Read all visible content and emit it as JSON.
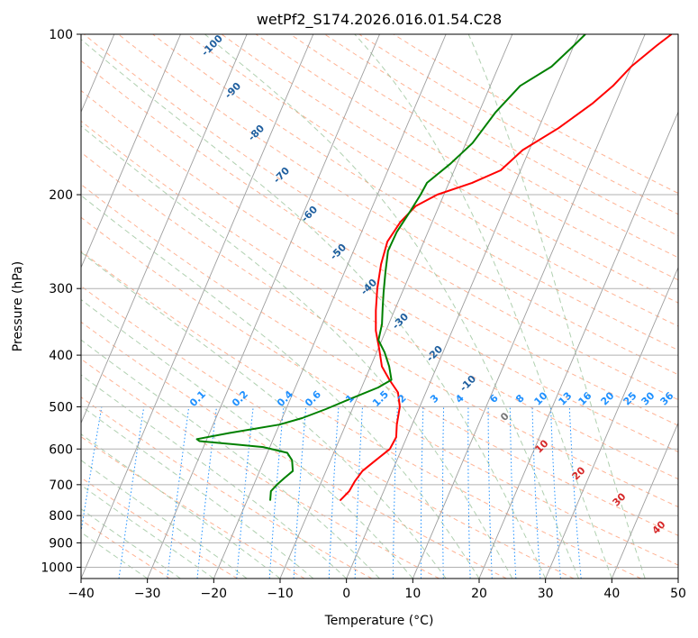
{
  "chart_data": {
    "type": "line",
    "title": "wetPf2_S174.2026.016.01.54.C28",
    "xlabel": "Temperature (°C)",
    "ylabel": "Pressure (hPa)",
    "xlim": [
      -40,
      50
    ],
    "ylim": [
      1050,
      100
    ],
    "y_scale": "log",
    "x_ticks": [
      -40,
      -30,
      -20,
      -10,
      0,
      10,
      20,
      30,
      40,
      50
    ],
    "y_ticks": [
      100,
      200,
      300,
      400,
      500,
      600,
      700,
      800,
      900,
      1000
    ],
    "grid": true,
    "series": [
      {
        "color": "#ff0000",
        "points": [
          [
            -6.0,
            750
          ],
          [
            -5.2,
            720
          ],
          [
            -5.0,
            690
          ],
          [
            -4.5,
            660
          ],
          [
            -3.2,
            630
          ],
          [
            -1.8,
            600
          ],
          [
            -1.6,
            570
          ],
          [
            -2.3,
            540
          ],
          [
            -3.0,
            500
          ],
          [
            -4.2,
            470
          ],
          [
            -6.3,
            445
          ],
          [
            -8.3,
            420
          ],
          [
            -9.8,
            390
          ],
          [
            -11.5,
            360
          ],
          [
            -12.8,
            330
          ],
          [
            -14.0,
            300
          ],
          [
            -15.0,
            270
          ],
          [
            -15.5,
            245
          ],
          [
            -14.8,
            225
          ],
          [
            -13.5,
            210
          ],
          [
            -11.0,
            200
          ],
          [
            -6.5,
            190
          ],
          [
            -3.0,
            180
          ],
          [
            -1.0,
            165
          ],
          [
            3.0,
            150
          ],
          [
            6.5,
            135
          ],
          [
            8.5,
            125
          ],
          [
            10.0,
            115
          ],
          [
            12.5,
            105
          ],
          [
            14.0,
            100
          ]
        ],
        "dash": "solid"
      },
      {
        "color": "#008000",
        "points": [
          [
            -16.5,
            750
          ],
          [
            -17.0,
            720
          ],
          [
            -16.5,
            700
          ],
          [
            -15.8,
            680
          ],
          [
            -15.0,
            660
          ],
          [
            -15.8,
            630
          ],
          [
            -17.0,
            610
          ],
          [
            -21.0,
            595
          ],
          [
            -31.0,
            580
          ],
          [
            -31.5,
            575
          ],
          [
            -27.0,
            560
          ],
          [
            -20.0,
            540
          ],
          [
            -17.0,
            525
          ],
          [
            -14.0,
            505
          ],
          [
            -10.5,
            480
          ],
          [
            -7.5,
            460
          ],
          [
            -6.0,
            445
          ],
          [
            -7.2,
            420
          ],
          [
            -8.8,
            395
          ],
          [
            -10.5,
            375
          ],
          [
            -11.0,
            350
          ],
          [
            -12.0,
            325
          ],
          [
            -12.8,
            305
          ],
          [
            -13.8,
            280
          ],
          [
            -14.8,
            255
          ],
          [
            -14.7,
            235
          ],
          [
            -14.0,
            215
          ],
          [
            -13.5,
            200
          ],
          [
            -13.3,
            190
          ],
          [
            -11.0,
            175
          ],
          [
            -9.0,
            160
          ],
          [
            -7.5,
            140
          ],
          [
            -5.5,
            125
          ],
          [
            -2.0,
            115
          ],
          [
            0.0,
            105
          ],
          [
            1.0,
            100
          ]
        ],
        "dash": "solid"
      }
    ],
    "dry_adiabat_labels": [
      "-100",
      "-90",
      "-80",
      "-70",
      "-60",
      "-50",
      "-40",
      "-30",
      "-20",
      "-10"
    ],
    "moist_adiabat_labels": [
      "0",
      "10",
      "20",
      "30",
      "40"
    ],
    "mixing_ratio_labels": [
      "0.1",
      "0.2",
      "0.4",
      "0.6",
      "1",
      "1.5",
      "2",
      "3",
      "4",
      "6",
      "8",
      "10",
      "13",
      "16",
      "20",
      "25",
      "30",
      "36"
    ],
    "colors": {
      "temperature": "#ff0000",
      "dewpoint": "#008000",
      "isotherm": "#9e9e9e",
      "dry_adiabat": "#ffa07a",
      "moist_adiabat": "#8fbc8f",
      "mixing_ratio": "#1e90ff",
      "dry_label": "#1f5f9f",
      "moist_label": "#d62728",
      "mixing_label": "#1e90ff"
    }
  }
}
